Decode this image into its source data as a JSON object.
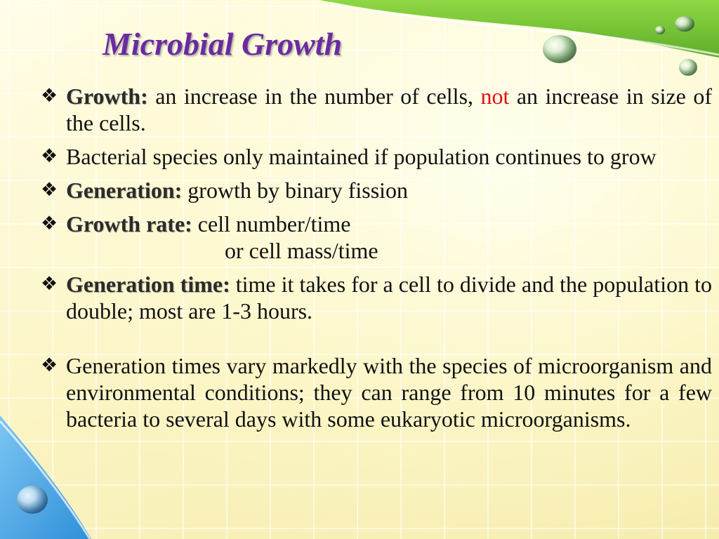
{
  "title": "Microbial Growth",
  "bullet_icon": "diamond-four-leaf-icon",
  "colors": {
    "title": "#6a2c9f",
    "highlight": "#e01010",
    "accent_green": "#7cc83a",
    "accent_blue": "#4aa9e8"
  },
  "bullets": [
    {
      "term": "Growth",
      "sep": ":",
      "text_before": " an increase in the number of cells, ",
      "highlight": "not",
      "text_after": " an increase in size of the cells."
    },
    {
      "text": "Bacterial species only maintained if population continues to grow"
    },
    {
      "term": "Generation",
      "sep": ":",
      "text": " growth by binary fission"
    },
    {
      "term": "Growth rate:",
      "text": " cell number/time",
      "continuation": "or cell mass/time"
    },
    {
      "term": "Generation time",
      "sep": ":",
      "text": " time it takes for a cell to divide and the population to double; most are 1-3 hours."
    },
    {
      "text": "Generation times vary markedly with the species of microorganism and environmental conditions; they can range from 10 minutes for a few bacteria to several days with some eukaryotic microorganisms."
    }
  ]
}
